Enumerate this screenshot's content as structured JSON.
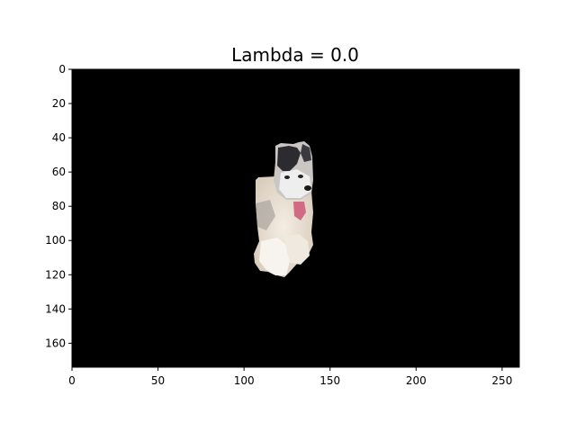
{
  "chart_data": {
    "type": "image",
    "title": "Lambda = 0.0",
    "xlabel": "",
    "ylabel": "",
    "image_width": 260,
    "image_height": 174,
    "xlim": [
      0,
      260
    ],
    "ylim": [
      174,
      0
    ],
    "x_ticks": [
      "0",
      "50",
      "100",
      "150",
      "200",
      "250"
    ],
    "y_ticks": [
      "0",
      "20",
      "40",
      "60",
      "80",
      "100",
      "120",
      "140",
      "160"
    ],
    "grid": false,
    "background_color": "#000000",
    "image_content": "masked husky dog (visible only in the central region)"
  }
}
